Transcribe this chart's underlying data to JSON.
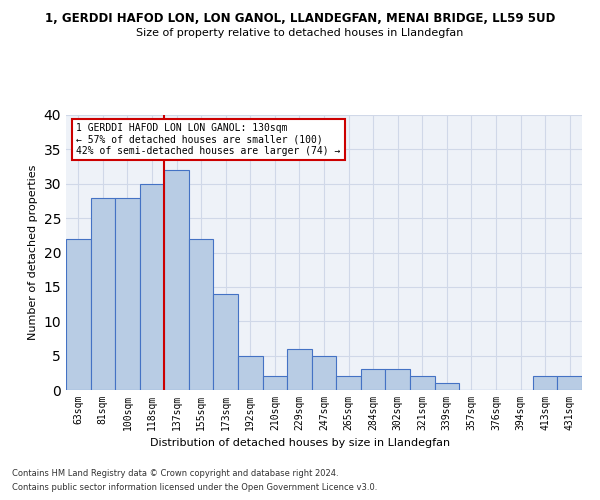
{
  "title": "1, GERDDI HAFOD LON, LON GANOL, LLANDEGFAN, MENAI BRIDGE, LL59 5UD",
  "subtitle": "Size of property relative to detached houses in Llandegfan",
  "xlabel": "Distribution of detached houses by size in Llandegfan",
  "ylabel": "Number of detached properties",
  "categories": [
    "63sqm",
    "81sqm",
    "100sqm",
    "118sqm",
    "137sqm",
    "155sqm",
    "173sqm",
    "192sqm",
    "210sqm",
    "229sqm",
    "247sqm",
    "265sqm",
    "284sqm",
    "302sqm",
    "321sqm",
    "339sqm",
    "357sqm",
    "376sqm",
    "394sqm",
    "413sqm",
    "431sqm"
  ],
  "values": [
    22,
    28,
    28,
    30,
    32,
    22,
    14,
    5,
    2,
    6,
    5,
    2,
    3,
    3,
    2,
    1,
    0,
    0,
    0,
    2,
    2
  ],
  "bar_color": "#b8cce4",
  "bar_edge_color": "#4472c4",
  "grid_color": "#d0d8e8",
  "annotation_text_line1": "1 GERDDI HAFOD LON LON GANOL: 130sqm",
  "annotation_text_line2": "← 57% of detached houses are smaller (100)",
  "annotation_text_line3": "42% of semi-detached houses are larger (74) →",
  "annotation_box_color": "#ffffff",
  "annotation_box_edge_color": "#cc0000",
  "red_line_color": "#cc0000",
  "ylim": [
    0,
    40
  ],
  "yticks": [
    0,
    5,
    10,
    15,
    20,
    25,
    30,
    35,
    40
  ],
  "footnote1": "Contains HM Land Registry data © Crown copyright and database right 2024.",
  "footnote2": "Contains public sector information licensed under the Open Government Licence v3.0.",
  "bg_color": "#ffffff",
  "plot_bg_color": "#eef2f8"
}
